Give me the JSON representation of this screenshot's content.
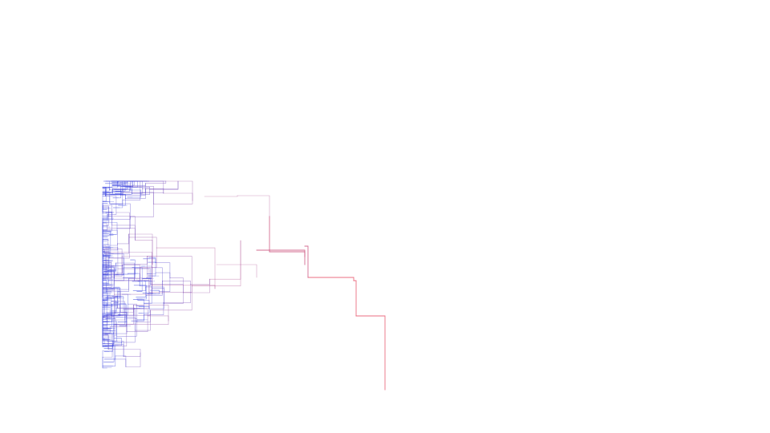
{
  "tree": {
    "orientation": "vertical",
    "edge_style": "orthogonal-elbow",
    "color_gradient": {
      "near_root": "#e8556b",
      "far_from_root": "#3b46e0"
    },
    "total_levels": 7,
    "root_children": 2
  }
}
